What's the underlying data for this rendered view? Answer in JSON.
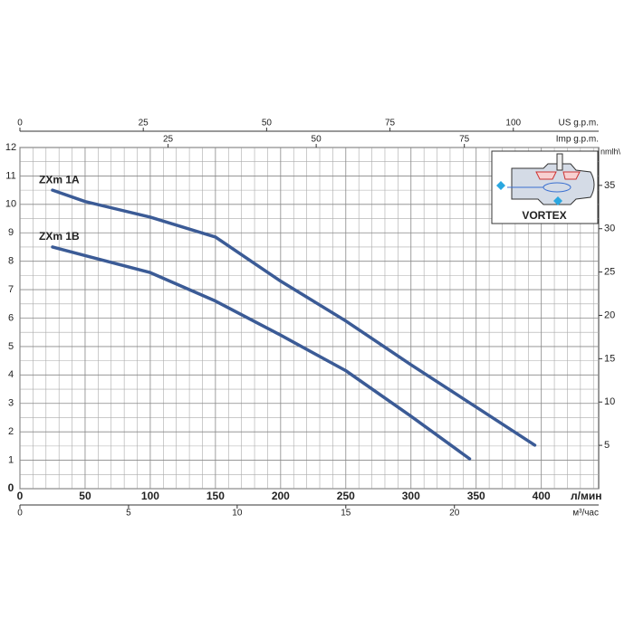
{
  "chart_data": {
    "type": "line",
    "xlim": [
      0,
      444
    ],
    "xticks": [
      0,
      50,
      100,
      150,
      200,
      250,
      300,
      350,
      400
    ],
    "x_label": "л/мин",
    "ylim": [
      0,
      12
    ],
    "yticks": [
      0,
      1,
      2,
      3,
      4,
      5,
      6,
      7,
      8,
      9,
      10,
      11,
      12
    ],
    "y2lim": [
      0,
      39.37
    ],
    "y2ticks": [
      5,
      10,
      15,
      20,
      25,
      30,
      35
    ],
    "y2_label": "nmlh\\",
    "x_minor_grid": [
      10,
      20,
      30,
      40,
      60,
      70,
      80,
      90,
      110,
      120,
      130,
      140,
      160,
      170,
      180,
      190,
      210,
      220,
      230,
      240,
      260,
      270,
      280,
      290,
      310,
      320,
      330,
      340,
      360,
      370,
      380,
      390,
      410,
      420,
      430,
      440
    ],
    "y_minor_grid": [
      0.5,
      1.5,
      2.5,
      3.5,
      4.5,
      5.5,
      6.5,
      7.5,
      8.5,
      9.5,
      10.5,
      11.5
    ],
    "grid": true,
    "secondary_x_axes": [
      {
        "label": "US g.p.m.",
        "position": "top",
        "xlim": [
          0,
          117.3
        ],
        "ticks": [
          0,
          25,
          50,
          75,
          100
        ]
      },
      {
        "label": "Imp g.p.m.",
        "position": "top",
        "xlim": [
          0,
          97.67
        ],
        "ticks": [
          25,
          50,
          75
        ]
      },
      {
        "label": "м³/час",
        "position": "bottom",
        "xlim": [
          0,
          26.64
        ],
        "ticks": [
          0,
          5,
          10,
          15,
          20
        ]
      }
    ],
    "series": [
      {
        "name": "ZXm 1A",
        "color": "#3b5b96",
        "x": [
          25,
          50,
          100,
          150,
          200,
          250,
          300,
          350,
          395
        ],
        "values": [
          10.5,
          10.1,
          9.55,
          8.85,
          7.3,
          5.9,
          4.36,
          2.87,
          1.53
        ]
      },
      {
        "name": "ZXm 1B",
        "color": "#3b5b96",
        "x": [
          25,
          50,
          100,
          150,
          200,
          250,
          300,
          345
        ],
        "values": [
          8.5,
          8.2,
          7.6,
          6.6,
          5.4,
          4.15,
          2.55,
          1.05
        ]
      }
    ],
    "inset_label": "VORTEX"
  }
}
